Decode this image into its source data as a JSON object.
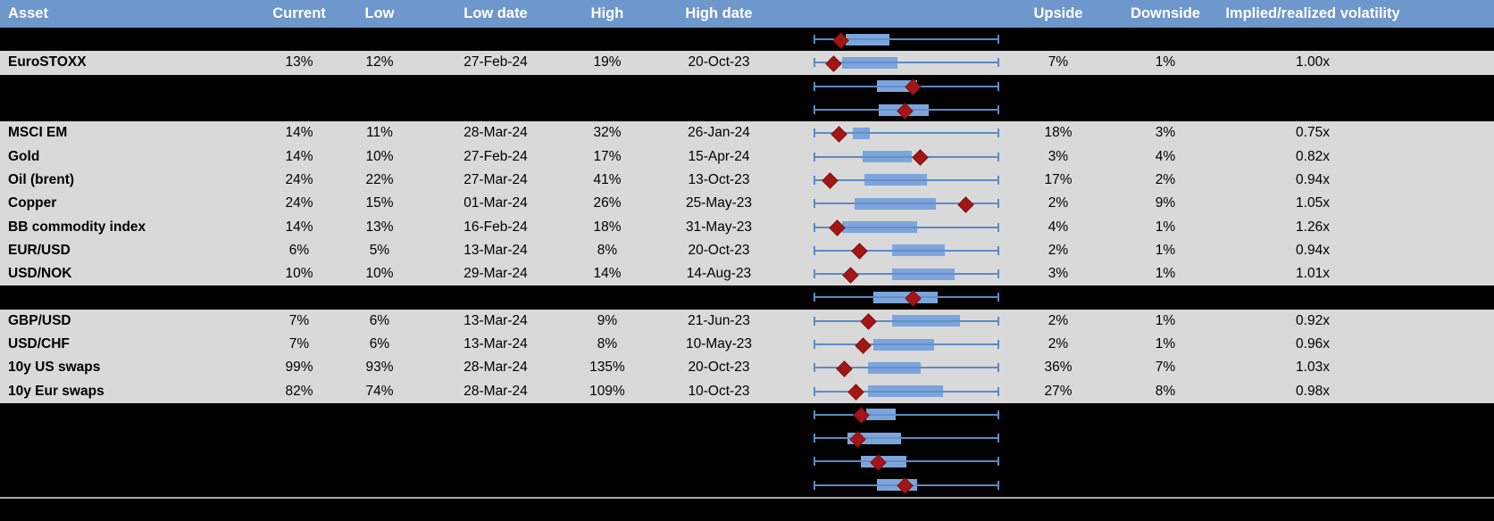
{
  "colors": {
    "header_bg": "#6E97CC",
    "header_text": "#FFFFFF",
    "row_bg": "#D9D9D9",
    "redacted_bg": "#000000",
    "box_fill": "#7CA5DC",
    "whisker": "#5B8AC6",
    "box_midline": "#4F7DBE",
    "marker_fill": "#A31616",
    "marker_edge": "#821011",
    "divider": "#A8A8A8"
  },
  "header": {
    "asset": "Asset",
    "current": "Current",
    "low": "Low",
    "low_date": "Low date",
    "high": "High",
    "high_date": "High date",
    "upside": "Upside",
    "downside": "Downside",
    "implied": "Implied/realized volatility"
  },
  "chart_note": "Each row contains a horizontal box plot; whiskers span the full plot range, box/marker positions are fractions 0-1 of that range.",
  "rows": [
    {
      "type": "redacted",
      "asset": "",
      "current": "",
      "low": "",
      "low_date": "",
      "high": "",
      "high_date": "",
      "upside": "",
      "downside": "",
      "implied": "",
      "boxplot": {
        "box": [
          0.17,
          0.41
        ],
        "marker": 0.14
      }
    },
    {
      "type": "data",
      "asset": "EuroSTOXX",
      "current": "13%",
      "low": "12%",
      "low_date": "27-Feb-24",
      "high": "19%",
      "high_date": "20-Oct-23",
      "upside": "7%",
      "downside": "1%",
      "implied": "1.00x",
      "boxplot": {
        "box": [
          0.15,
          0.45
        ],
        "marker": 0.1
      }
    },
    {
      "type": "redacted",
      "asset": "",
      "current": "",
      "low": "",
      "low_date": "",
      "high": "",
      "high_date": "",
      "upside": "",
      "downside": "",
      "implied": "",
      "boxplot": {
        "box": [
          0.34,
          0.56
        ],
        "marker": 0.53
      }
    },
    {
      "type": "redacted",
      "asset": "",
      "current": "",
      "low": "",
      "low_date": "",
      "high": "",
      "high_date": "",
      "upside": "",
      "downside": "",
      "implied": "",
      "boxplot": {
        "box": [
          0.35,
          0.62
        ],
        "marker": 0.49
      }
    },
    {
      "type": "data",
      "asset": "MSCI EM",
      "current": "14%",
      "low": "11%",
      "low_date": "28-Mar-24",
      "high": "32%",
      "high_date": "26-Jan-24",
      "upside": "18%",
      "downside": "3%",
      "implied": "0.75x",
      "boxplot": {
        "box": [
          0.21,
          0.3
        ],
        "marker": 0.13
      }
    },
    {
      "type": "data",
      "asset": "Gold",
      "current": "14%",
      "low": "10%",
      "low_date": "27-Feb-24",
      "high": "17%",
      "high_date": "15-Apr-24",
      "upside": "3%",
      "downside": "4%",
      "implied": "0.82x",
      "boxplot": {
        "box": [
          0.26,
          0.53
        ],
        "marker": 0.57
      }
    },
    {
      "type": "data",
      "asset": "Oil (brent)",
      "current": "24%",
      "low": "22%",
      "low_date": "27-Mar-24",
      "high": "41%",
      "high_date": "13-Oct-23",
      "upside": "17%",
      "downside": "2%",
      "implied": "0.94x",
      "boxplot": {
        "box": [
          0.27,
          0.61
        ],
        "marker": 0.08
      }
    },
    {
      "type": "data",
      "asset": "Copper",
      "current": "24%",
      "low": "15%",
      "low_date": "01-Mar-24",
      "high": "26%",
      "high_date": "25-May-23",
      "upside": "2%",
      "downside": "9%",
      "implied": "1.05x",
      "boxplot": {
        "box": [
          0.22,
          0.66
        ],
        "marker": 0.82
      }
    },
    {
      "type": "data",
      "asset": "BB commodity index",
      "current": "14%",
      "low": "13%",
      "low_date": "16-Feb-24",
      "high": "18%",
      "high_date": "31-May-23",
      "upside": "4%",
      "downside": "1%",
      "implied": "1.26x",
      "boxplot": {
        "box": [
          0.15,
          0.56
        ],
        "marker": 0.12
      }
    },
    {
      "type": "data",
      "asset": "EUR/USD",
      "current": "6%",
      "low": "5%",
      "low_date": "13-Mar-24",
      "high": "8%",
      "high_date": "20-Oct-23",
      "upside": "2%",
      "downside": "1%",
      "implied": "0.94x",
      "boxplot": {
        "box": [
          0.42,
          0.71
        ],
        "marker": 0.24
      }
    },
    {
      "type": "data",
      "asset": "USD/NOK",
      "current": "10%",
      "low": "10%",
      "low_date": "29-Mar-24",
      "high": "14%",
      "high_date": "14-Aug-23",
      "upside": "3%",
      "downside": "1%",
      "implied": "1.01x",
      "boxplot": {
        "box": [
          0.42,
          0.76
        ],
        "marker": 0.19
      }
    },
    {
      "type": "redacted",
      "asset": "",
      "current": "",
      "low": "",
      "low_date": "",
      "high": "",
      "high_date": "",
      "upside": "",
      "downside": "",
      "implied": "",
      "boxplot": {
        "box": [
          0.32,
          0.67
        ],
        "marker": 0.53
      }
    },
    {
      "type": "data",
      "asset": "GBP/USD",
      "current": "7%",
      "low": "6%",
      "low_date": "13-Mar-24",
      "high": "9%",
      "high_date": "21-Jun-23",
      "upside": "2%",
      "downside": "1%",
      "implied": "0.92x",
      "boxplot": {
        "box": [
          0.42,
          0.79
        ],
        "marker": 0.29
      }
    },
    {
      "type": "data",
      "asset": "USD/CHF",
      "current": "7%",
      "low": "6%",
      "low_date": "13-Mar-24",
      "high": "8%",
      "high_date": "10-May-23",
      "upside": "2%",
      "downside": "1%",
      "implied": "0.96x",
      "boxplot": {
        "box": [
          0.32,
          0.65
        ],
        "marker": 0.26
      }
    },
    {
      "type": "data",
      "asset": "10y US swaps",
      "current": "99%",
      "low": "93%",
      "low_date": "28-Mar-24",
      "high": "135%",
      "high_date": "20-Oct-23",
      "upside": "36%",
      "downside": "7%",
      "implied": "1.03x",
      "boxplot": {
        "box": [
          0.29,
          0.58
        ],
        "marker": 0.16
      }
    },
    {
      "type": "data",
      "asset": "10y Eur swaps",
      "current": "82%",
      "low": "74%",
      "low_date": "28-Mar-24",
      "high": "109%",
      "high_date": "10-Oct-23",
      "upside": "27%",
      "downside": "8%",
      "implied": "0.98x",
      "boxplot": {
        "box": [
          0.29,
          0.7
        ],
        "marker": 0.22
      }
    },
    {
      "type": "redacted",
      "asset": "",
      "current": "",
      "low": "",
      "low_date": "",
      "high": "",
      "high_date": "",
      "upside": "",
      "downside": "",
      "implied": "",
      "boxplot": {
        "box": [
          0.28,
          0.44
        ],
        "marker": 0.25
      }
    },
    {
      "type": "redacted",
      "asset": "",
      "current": "",
      "low": "",
      "low_date": "",
      "high": "",
      "high_date": "",
      "upside": "",
      "downside": "",
      "implied": "",
      "boxplot": {
        "box": [
          0.18,
          0.47
        ],
        "marker": 0.23
      }
    },
    {
      "type": "redacted",
      "asset": "",
      "current": "",
      "low": "",
      "low_date": "",
      "high": "",
      "high_date": "",
      "upside": "",
      "downside": "",
      "implied": "",
      "boxplot": {
        "box": [
          0.25,
          0.5
        ],
        "marker": 0.34
      }
    },
    {
      "type": "redacted",
      "asset": "",
      "current": "",
      "low": "",
      "low_date": "",
      "high": "",
      "high_date": "",
      "upside": "",
      "downside": "",
      "implied": "",
      "boxplot": {
        "box": [
          0.34,
          0.56
        ],
        "marker": 0.49
      }
    }
  ]
}
